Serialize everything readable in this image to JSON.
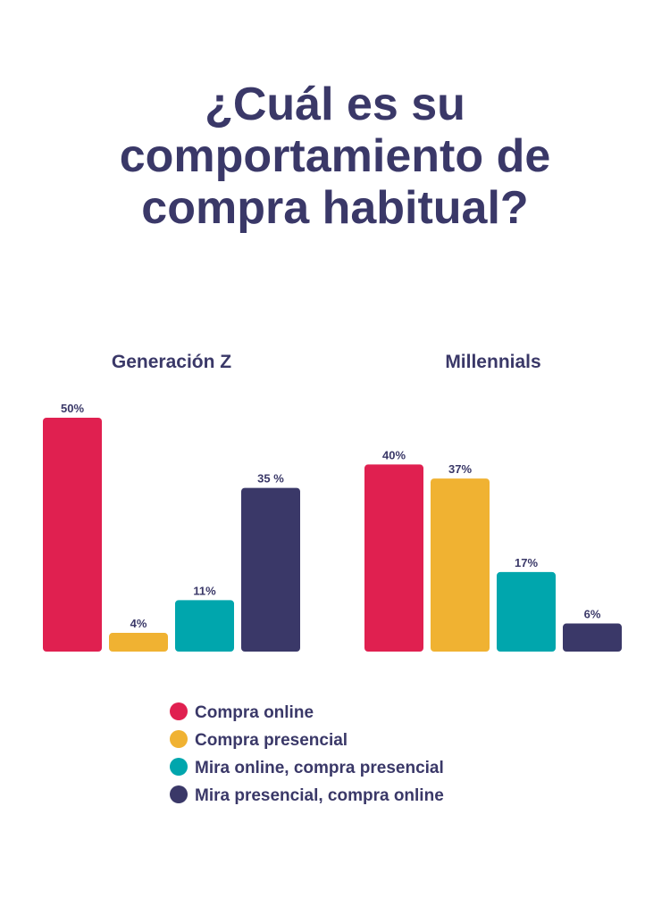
{
  "chart_data": {
    "type": "bar",
    "title": "¿Cuál es su comportamiento de compra habitual?",
    "categories": [
      "Generación Z",
      "Millennials"
    ],
    "series": [
      {
        "name": "Compra online",
        "color": "#e02050",
        "values": [
          50,
          40
        ],
        "value_labels": [
          "50%",
          "40%"
        ]
      },
      {
        "name": "Compra presencial",
        "color": "#f0b232",
        "values": [
          4,
          37
        ],
        "value_labels": [
          "4%",
          "37%"
        ]
      },
      {
        "name": "Mira online, compra presencial",
        "color": "#00a6ad",
        "values": [
          11,
          17
        ],
        "value_labels": [
          "11%",
          "17%"
        ]
      },
      {
        "name": "Mira presencial, compra online",
        "color": "#3a3868",
        "values": [
          35,
          6
        ],
        "value_labels": [
          "35 %",
          "6%"
        ]
      }
    ],
    "ylim": [
      0,
      50
    ],
    "legend": "bottom"
  }
}
